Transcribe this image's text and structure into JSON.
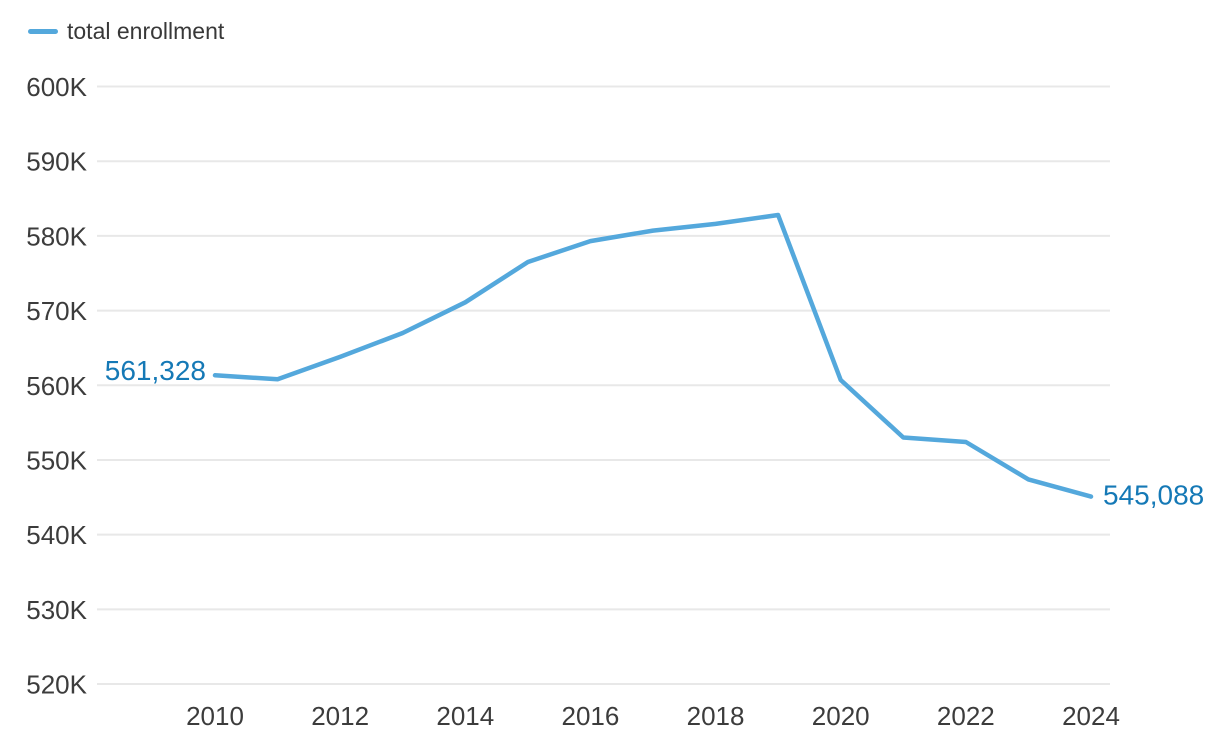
{
  "legend": {
    "series_label": "total enrollment"
  },
  "colors": {
    "line": "#54a8dc",
    "data_label": "#1579b6",
    "axis_text": "#3c3c3c",
    "gridline": "#e8e8e8",
    "background": "#ffffff"
  },
  "chart_data": {
    "type": "line",
    "title": "",
    "xlabel": "",
    "ylabel": "",
    "grid": true,
    "legend_position": "top-left",
    "x": [
      2010,
      2011,
      2012,
      2013,
      2014,
      2015,
      2016,
      2017,
      2018,
      2019,
      2020,
      2021,
      2022,
      2023,
      2024
    ],
    "series": [
      {
        "name": "total enrollment",
        "values": [
          561328,
          560800,
          563800,
          567000,
          571100,
          576500,
          579300,
          580700,
          581600,
          582800,
          560700,
          553000,
          552400,
          547400,
          545088
        ]
      }
    ],
    "x_tick_labels": [
      "2010",
      "2012",
      "2014",
      "2016",
      "2018",
      "2020",
      "2022",
      "2024"
    ],
    "x_tick_years": [
      2010,
      2012,
      2014,
      2016,
      2018,
      2020,
      2022,
      2024
    ],
    "y_tick_labels": [
      "600K",
      "590K",
      "580K",
      "570K",
      "560K",
      "550K",
      "540K",
      "530K",
      "520K"
    ],
    "y_tick_values": [
      600000,
      590000,
      580000,
      570000,
      560000,
      550000,
      540000,
      530000,
      520000
    ],
    "ylim": [
      520000,
      600000
    ],
    "point_labels": {
      "first": "561,328",
      "last": "545,088"
    }
  }
}
